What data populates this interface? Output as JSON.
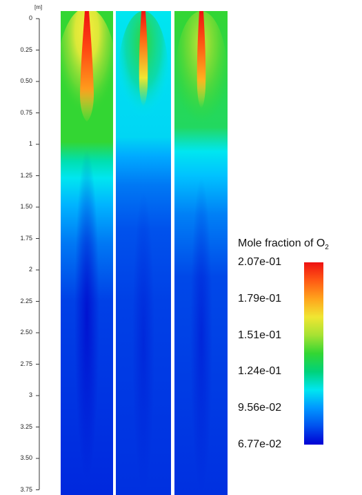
{
  "axis": {
    "unit": "[m]",
    "ticks": [
      "0",
      "0.25",
      "0.50",
      "0.75",
      "1",
      "1.25",
      "1.50",
      "1.75",
      "2",
      "2.25",
      "2.50",
      "2.75",
      "3",
      "3.25",
      "3.50",
      "3.75"
    ]
  },
  "colorbar": {
    "title": "Mole fraction of O",
    "title_subscript": "2",
    "labels": [
      "2.07e-01",
      "1.79e-01",
      "1.51e-01",
      "1.24e-01",
      "9.56e-02",
      "6.77e-02"
    ],
    "min": 0.0677,
    "max": 0.207,
    "colors": [
      "#0000d4",
      "#0050ee",
      "#0096ff",
      "#00e6f0",
      "#00d27a",
      "#33d633",
      "#a6e233",
      "#f0e632",
      "#ffa41c",
      "#ff5a14",
      "#ee1111"
    ]
  },
  "panels": [
    {
      "name": "panel-1"
    },
    {
      "name": "panel-2"
    },
    {
      "name": "panel-3"
    }
  ]
}
